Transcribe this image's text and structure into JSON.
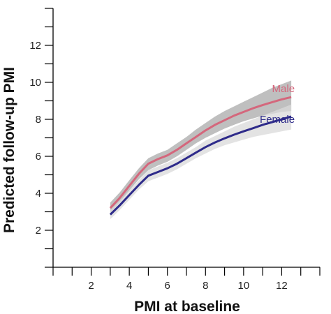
{
  "chart_data": {
    "type": "line",
    "title": "",
    "xlabel": "PMI at baseline",
    "ylabel": "Predicted follow-up PMI",
    "xlim": [
      0,
      14
    ],
    "ylim": [
      0,
      14
    ],
    "x_ticks": [
      2,
      4,
      6,
      8,
      10,
      12
    ],
    "y_ticks": [
      2,
      4,
      6,
      8,
      10,
      12
    ],
    "grid": false,
    "legend": "none",
    "series": [
      {
        "name": "Male",
        "color": "#d4677c",
        "band_color": "#bcbcbc",
        "x": [
          3.0,
          3.5,
          4.0,
          4.5,
          5.0,
          5.5,
          6.0,
          6.5,
          7.0,
          7.5,
          8.0,
          8.5,
          9.0,
          9.5,
          10.0,
          10.5,
          11.0,
          11.5,
          12.0,
          12.5
        ],
        "y": [
          3.2,
          3.75,
          4.4,
          5.05,
          5.6,
          5.85,
          6.05,
          6.35,
          6.7,
          7.05,
          7.4,
          7.7,
          7.95,
          8.2,
          8.4,
          8.6,
          8.77,
          8.93,
          9.08,
          9.2
        ],
        "lower": [
          2.95,
          3.5,
          4.15,
          4.75,
          5.25,
          5.5,
          5.7,
          6.0,
          6.35,
          6.7,
          7.0,
          7.25,
          7.5,
          7.7,
          7.9,
          8.05,
          8.2,
          8.3,
          8.4,
          8.45
        ],
        "upper": [
          3.5,
          4.05,
          4.7,
          5.35,
          5.9,
          6.15,
          6.35,
          6.7,
          7.05,
          7.45,
          7.8,
          8.15,
          8.45,
          8.7,
          8.95,
          9.2,
          9.45,
          9.7,
          9.9,
          10.1
        ]
      },
      {
        "name": "Female",
        "color": "#2e2b8a",
        "band_color": "#d9d9d9",
        "x": [
          3.0,
          3.5,
          4.0,
          4.5,
          5.0,
          5.5,
          6.0,
          6.5,
          7.0,
          7.5,
          8.0,
          8.5,
          9.0,
          9.5,
          10.0,
          10.5,
          11.0,
          11.5,
          12.0,
          12.5
        ],
        "y": [
          2.85,
          3.35,
          3.9,
          4.45,
          4.95,
          5.15,
          5.35,
          5.6,
          5.9,
          6.2,
          6.5,
          6.75,
          6.97,
          7.17,
          7.35,
          7.52,
          7.7,
          7.85,
          8.0,
          8.15
        ],
        "lower": [
          2.6,
          3.1,
          3.65,
          4.2,
          4.65,
          4.85,
          5.05,
          5.3,
          5.6,
          5.9,
          6.15,
          6.4,
          6.6,
          6.75,
          6.9,
          7.05,
          7.15,
          7.25,
          7.35,
          7.45
        ],
        "upper": [
          3.1,
          3.6,
          4.15,
          4.7,
          5.25,
          5.45,
          5.65,
          5.9,
          6.2,
          6.5,
          6.85,
          7.1,
          7.35,
          7.6,
          7.8,
          8.0,
          8.2,
          8.4,
          8.6,
          8.8
        ]
      }
    ]
  }
}
